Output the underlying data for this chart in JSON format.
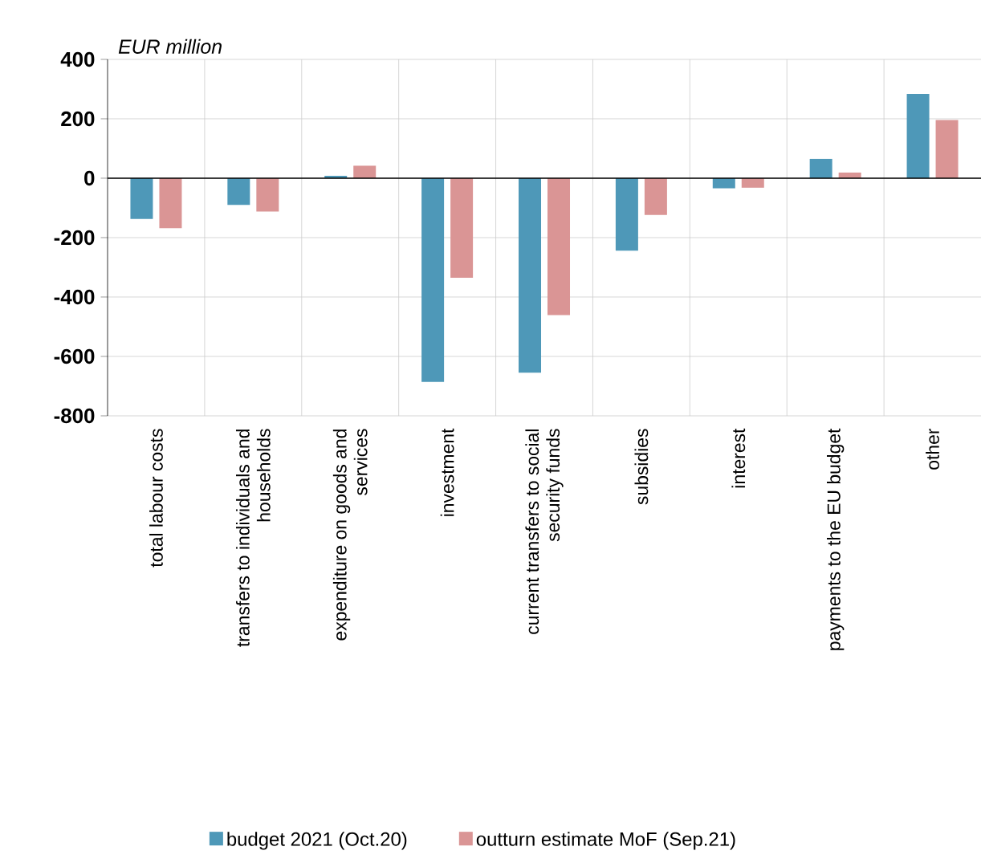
{
  "chart_data": {
    "type": "bar",
    "ylabel": "EUR million",
    "categories": [
      "total labour costs",
      "transfers to individuals and households",
      "expenditure on goods and services",
      "investment",
      "current transfers to social security funds",
      "subsidies",
      "interest",
      "payments to the EU budget",
      "other"
    ],
    "series": [
      {
        "name": "budget 2021 (Oct.20)",
        "color": "#4e98b8",
        "values": [
          -137,
          -90,
          8,
          -686,
          -655,
          -244,
          -34,
          65,
          284
        ]
      },
      {
        "name": "outturn estimate MoF (Sep.21)",
        "color": "#da9595",
        "values": [
          -168,
          -112,
          42,
          -335,
          -461,
          -124,
          -32,
          19,
          196
        ]
      }
    ],
    "ylim": [
      -800,
      400
    ],
    "yticks": [
      -800,
      -600,
      -400,
      -200,
      0,
      200,
      400
    ],
    "grid": true,
    "legend": "bottom"
  }
}
